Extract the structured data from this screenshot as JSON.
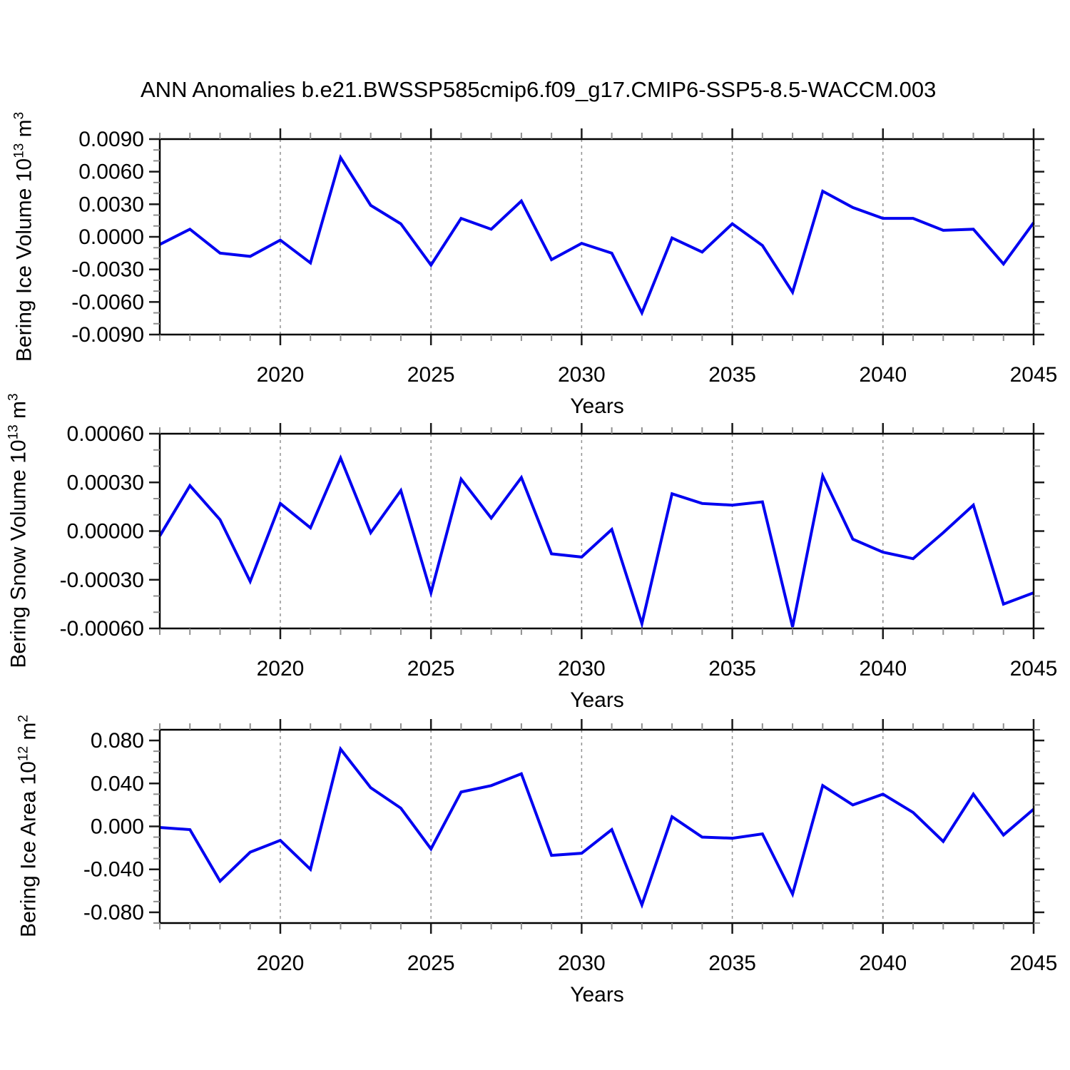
{
  "title": "ANN Anomalies b.e21.BWSSP585cmip6.f09_g17.CMIP6-SSP5-8.5-WACCM.003",
  "colors": {
    "line": "#0000F0",
    "grid": "#909090",
    "axis": "#000000",
    "minor_tick": "#8f8f8f",
    "major_tick": "#1a1a1a",
    "text": "#000000"
  },
  "x_axis": {
    "label": "Years",
    "range": [
      2016,
      2045
    ],
    "ticks": [
      2020,
      2025,
      2030,
      2035,
      2040,
      2045
    ],
    "tick_labels": [
      "2020",
      "2025",
      "2030",
      "2035",
      "2040",
      "2045"
    ],
    "minor_step": 1,
    "gridlines": [
      2020,
      2025,
      2030,
      2035,
      2040
    ]
  },
  "chart_data": [
    {
      "type": "line",
      "id": "bering-ice-volume",
      "ylabel": {
        "text": "Bering Ice Volume 10",
        "exp": "13",
        "unit": " m",
        "unit_exp": "3"
      },
      "ylim": [
        -0.009,
        0.009
      ],
      "yminor_step": 0.001,
      "yticks": [
        {
          "v": 0.009,
          "label": "0.0090"
        },
        {
          "v": 0.006,
          "label": "0.0060"
        },
        {
          "v": 0.003,
          "label": "0.0030"
        },
        {
          "v": 0.0,
          "label": "0.0000"
        },
        {
          "v": -0.003,
          "label": "-0.0030"
        },
        {
          "v": -0.006,
          "label": "-0.0060"
        },
        {
          "v": -0.009,
          "label": "-0.0090"
        }
      ],
      "x": [
        2016,
        2017,
        2018,
        2019,
        2020,
        2021,
        2022,
        2023,
        2024,
        2025,
        2026,
        2027,
        2028,
        2029,
        2030,
        2031,
        2032,
        2033,
        2034,
        2035,
        2036,
        2037,
        2038,
        2039,
        2040,
        2041,
        2042,
        2043,
        2044,
        2045
      ],
      "values": [
        -0.0007,
        0.0007,
        -0.0015,
        -0.0018,
        -0.0003,
        -0.0024,
        0.0073,
        0.0029,
        0.0012,
        -0.0026,
        0.0017,
        0.0007,
        0.0033,
        -0.0021,
        -0.0006,
        -0.0015,
        -0.007,
        -0.0001,
        -0.0014,
        0.0012,
        -0.0008,
        -0.0051,
        0.0042,
        0.0027,
        0.0017,
        0.0017,
        0.0006,
        0.0007,
        -0.0025,
        0.0013
      ]
    },
    {
      "type": "line",
      "id": "bering-snow-volume",
      "ylabel": {
        "text": "Bering Snow Volume 10",
        "exp": "13",
        "unit": " m",
        "unit_exp": "3"
      },
      "ylim": [
        -0.0006,
        0.0006
      ],
      "yminor_step": 0.0001,
      "yticks": [
        {
          "v": 0.0006,
          "label": "0.00060"
        },
        {
          "v": 0.0003,
          "label": "0.00030"
        },
        {
          "v": 0.0,
          "label": "0.00000"
        },
        {
          "v": -0.0003,
          "label": "-0.00030"
        },
        {
          "v": -0.0006,
          "label": "-0.00060"
        }
      ],
      "x": [
        2016,
        2017,
        2018,
        2019,
        2020,
        2021,
        2022,
        2023,
        2024,
        2025,
        2026,
        2027,
        2028,
        2029,
        2030,
        2031,
        2032,
        2033,
        2034,
        2035,
        2036,
        2037,
        2038,
        2039,
        2040,
        2041,
        2042,
        2043,
        2044,
        2045
      ],
      "values": [
        -3e-05,
        0.00028,
        7e-05,
        -0.00031,
        0.00017,
        2e-05,
        0.00045,
        -1e-05,
        0.00025,
        -0.00038,
        0.00032,
        8e-05,
        0.00033,
        -0.00014,
        -0.00016,
        1e-05,
        -0.00057,
        0.00023,
        0.00017,
        0.00016,
        0.00018,
        -0.00059,
        0.00034,
        -5e-05,
        -0.00013,
        -0.00017,
        -1e-05,
        0.00016,
        -0.00045,
        -0.00038
      ]
    },
    {
      "type": "line",
      "id": "bering-ice-area",
      "ylabel": {
        "text": "Bering Ice Area 10",
        "exp": "12",
        "unit": " m",
        "unit_exp": "2"
      },
      "ylim": [
        -0.09,
        0.09
      ],
      "yminor_step": 0.01,
      "yticks": [
        {
          "v": 0.08,
          "label": "0.080"
        },
        {
          "v": 0.04,
          "label": "0.040"
        },
        {
          "v": 0.0,
          "label": "0.000"
        },
        {
          "v": -0.04,
          "label": "-0.040"
        },
        {
          "v": -0.08,
          "label": "-0.080"
        }
      ],
      "x": [
        2016,
        2017,
        2018,
        2019,
        2020,
        2021,
        2022,
        2023,
        2024,
        2025,
        2026,
        2027,
        2028,
        2029,
        2030,
        2031,
        2032,
        2033,
        2034,
        2035,
        2036,
        2037,
        2038,
        2039,
        2040,
        2041,
        2042,
        2043,
        2044,
        2045
      ],
      "values": [
        -0.001,
        -0.003,
        -0.051,
        -0.024,
        -0.013,
        -0.04,
        0.072,
        0.036,
        0.017,
        -0.021,
        0.032,
        0.038,
        0.049,
        -0.027,
        -0.025,
        -0.003,
        -0.073,
        0.009,
        -0.01,
        -0.011,
        -0.007,
        -0.063,
        0.038,
        0.02,
        0.03,
        0.013,
        -0.014,
        0.03,
        -0.008,
        0.016
      ]
    }
  ]
}
